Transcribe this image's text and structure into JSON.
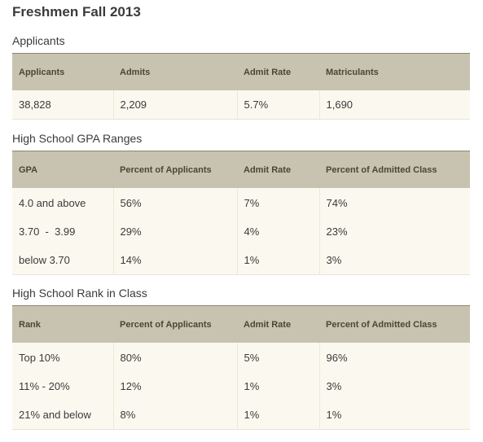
{
  "page_title": "Freshmen Fall 2013",
  "applicants_section": {
    "title": "Applicants",
    "headers": [
      "Applicants",
      "Admits",
      "Admit Rate",
      "Matriculants"
    ],
    "rows": [
      [
        "38,828",
        "2,209",
        "5.7%",
        "1,690"
      ]
    ]
  },
  "gpa_section": {
    "title": "High School GPA Ranges",
    "headers": [
      "GPA",
      "Percent of Applicants",
      "Admit Rate",
      "Percent of Admitted Class"
    ],
    "rows": [
      [
        "4.0 and above",
        "56%",
        "7%",
        "74%"
      ],
      [
        "3.70  -  3.99",
        "29%",
        "4%",
        "23%"
      ],
      [
        "below 3.70",
        "14%",
        "1%",
        "3%"
      ]
    ]
  },
  "rank_section": {
    "title": "High School Rank in Class",
    "headers": [
      "Rank",
      "Percent of Applicants",
      "Admit Rate",
      "Percent of Admitted Class"
    ],
    "rows": [
      [
        "Top 10%",
        "80%",
        "5%",
        "96%"
      ],
      [
        "11% - 20%",
        "12%",
        "1%",
        "3%"
      ],
      [
        "21% and below",
        "8%",
        "1%",
        "1%"
      ]
    ]
  }
}
